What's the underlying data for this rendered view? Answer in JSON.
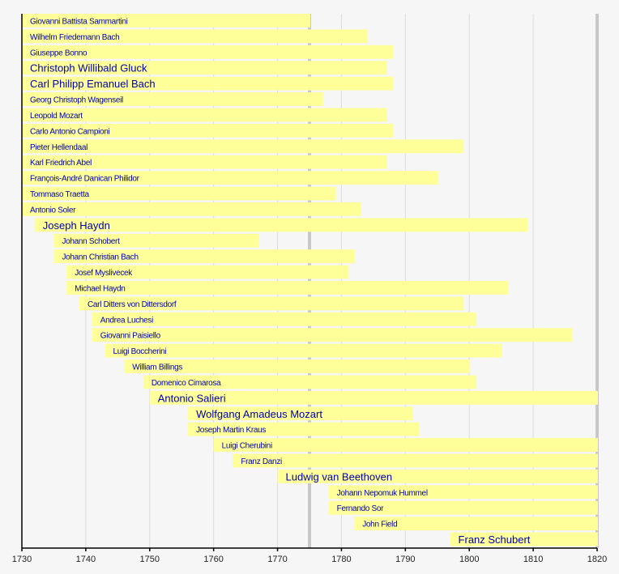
{
  "chart_data": {
    "type": "timeline",
    "title": "",
    "xlabel": "",
    "ylabel": "",
    "xlim": [
      1730,
      1820
    ],
    "x_ticks": [
      1730,
      1740,
      1750,
      1760,
      1770,
      1780,
      1790,
      1800,
      1810,
      1820
    ],
    "highlight_lines": [
      1775,
      1820
    ],
    "colors": {
      "bar": "#ffff99",
      "label": "#0000aa",
      "background": "#f6f6f6",
      "grid": "#dcdcdc",
      "highlight": "#c8c8c8"
    },
    "composers": [
      {
        "name": "Giovanni Battista Sammartini",
        "start": 1730,
        "end": 1775,
        "prominent": false
      },
      {
        "name": "Wilhelm Friedemann Bach",
        "start": 1730,
        "end": 1784,
        "prominent": false
      },
      {
        "name": "Giuseppe Bonno",
        "start": 1730,
        "end": 1788,
        "prominent": false
      },
      {
        "name": "Christoph Willibald Gluck",
        "start": 1730,
        "end": 1787,
        "prominent": true
      },
      {
        "name": "Carl Philipp Emanuel Bach",
        "start": 1730,
        "end": 1788,
        "prominent": true
      },
      {
        "name": "Georg Christoph Wagenseil",
        "start": 1730,
        "end": 1777,
        "prominent": false
      },
      {
        "name": "Leopold Mozart",
        "start": 1730,
        "end": 1787,
        "prominent": false
      },
      {
        "name": "Carlo Antonio Campioni",
        "start": 1730,
        "end": 1788,
        "prominent": false
      },
      {
        "name": "Pieter Hellendaal",
        "start": 1730,
        "end": 1799,
        "prominent": false
      },
      {
        "name": "Karl Friedrich Abel",
        "start": 1730,
        "end": 1787,
        "prominent": false
      },
      {
        "name": "François-André Danican Philidor",
        "start": 1730,
        "end": 1795,
        "prominent": false
      },
      {
        "name": "Tommaso Traetta",
        "start": 1730,
        "end": 1779,
        "prominent": false
      },
      {
        "name": "Antonio Soler",
        "start": 1730,
        "end": 1783,
        "prominent": false
      },
      {
        "name": "Joseph Haydn",
        "start": 1732,
        "end": 1809,
        "prominent": true
      },
      {
        "name": "Johann Schobert",
        "start": 1735,
        "end": 1767,
        "prominent": false
      },
      {
        "name": "Johann Christian Bach",
        "start": 1735,
        "end": 1782,
        "prominent": false
      },
      {
        "name": "Josef Myslivecek",
        "start": 1737,
        "end": 1781,
        "prominent": false
      },
      {
        "name": "Michael Haydn",
        "start": 1737,
        "end": 1806,
        "prominent": false
      },
      {
        "name": "Carl Ditters von Dittersdorf",
        "start": 1739,
        "end": 1799,
        "prominent": false
      },
      {
        "name": "Andrea Luchesi",
        "start": 1741,
        "end": 1801,
        "prominent": false
      },
      {
        "name": "Giovanni Paisiello",
        "start": 1741,
        "end": 1816,
        "prominent": false
      },
      {
        "name": "Luigi Boccherini",
        "start": 1743,
        "end": 1805,
        "prominent": false
      },
      {
        "name": "William Billings",
        "start": 1746,
        "end": 1800,
        "prominent": false
      },
      {
        "name": "Domenico Cimarosa",
        "start": 1749,
        "end": 1801,
        "prominent": false
      },
      {
        "name": "Antonio Salieri",
        "start": 1750,
        "end": 1820,
        "prominent": true
      },
      {
        "name": "Wolfgang Amadeus Mozart",
        "start": 1756,
        "end": 1791,
        "prominent": true
      },
      {
        "name": "Joseph Martin Kraus",
        "start": 1756,
        "end": 1792,
        "prominent": false
      },
      {
        "name": "Luigi Cherubini",
        "start": 1760,
        "end": 1820,
        "prominent": false
      },
      {
        "name": "Franz Danzi",
        "start": 1763,
        "end": 1820,
        "prominent": false
      },
      {
        "name": "Ludwig van Beethoven",
        "start": 1770,
        "end": 1820,
        "prominent": true
      },
      {
        "name": "Johann Nepomuk Hummel",
        "start": 1778,
        "end": 1820,
        "prominent": false
      },
      {
        "name": "Fernando Sor",
        "start": 1778,
        "end": 1820,
        "prominent": false
      },
      {
        "name": "John Field",
        "start": 1782,
        "end": 1820,
        "prominent": false
      },
      {
        "name": "Franz Schubert",
        "start": 1797,
        "end": 1820,
        "prominent": true
      }
    ]
  }
}
